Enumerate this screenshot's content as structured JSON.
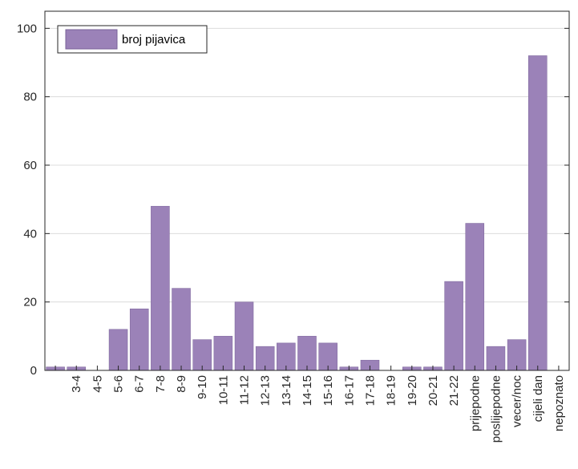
{
  "chart_data": {
    "type": "bar",
    "categories": [
      "",
      "3-4",
      "4-5",
      "5-6",
      "6-7",
      "7-8",
      "8-9",
      "9-10",
      "10-11",
      "11-12",
      "12-13",
      "13-14",
      "14-15",
      "15-16",
      "16-17",
      "17-18",
      "18-19",
      "19-20",
      "20-21",
      "21-22",
      "prijepodne",
      "poslijepodne",
      "vecer/noc",
      "cijeli dan",
      "nepoznato"
    ],
    "series": [
      {
        "name": "broj pijavica",
        "values": [
          1,
          1,
          0,
          12,
          18,
          48,
          24,
          9,
          10,
          20,
          7,
          8,
          10,
          8,
          1,
          3,
          0,
          1,
          1,
          26,
          43,
          7,
          9,
          92,
          0
        ]
      }
    ],
    "yticks": [
      "0",
      "20",
      "40",
      "60",
      "80",
      "100"
    ],
    "ylim": [
      0,
      105
    ],
    "grid": "horizontal",
    "legend_position": "top-left",
    "colors": {
      "bar": "#9b82b8",
      "bar_edge": "#7a6399",
      "axis": "#262626",
      "grid": "#dcdcdc"
    }
  }
}
